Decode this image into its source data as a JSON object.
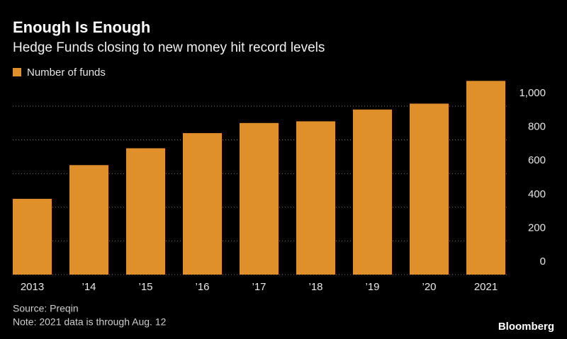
{
  "chart_data": {
    "type": "bar",
    "title": "Enough Is Enough",
    "subtitle": "Hedge Funds closing to new money hit record levels",
    "categories": [
      "2013",
      "’14",
      "’15",
      "’16",
      "’17",
      "’18",
      "’19",
      "’20",
      "2021"
    ],
    "series": [
      {
        "name": "Number of funds",
        "color": "#e0902a",
        "values": [
          450,
          650,
          750,
          840,
          900,
          910,
          980,
          1015,
          1150
        ]
      }
    ],
    "ylim": [
      0,
      1200
    ],
    "yticks": [
      0,
      200,
      400,
      600,
      800,
      {
        "value": 1000,
        "label": "1,000"
      }
    ],
    "grid": true,
    "source": "Source: Preqin",
    "note": "Note: 2021 data is through Aug. 12",
    "brand": "Bloomberg"
  }
}
